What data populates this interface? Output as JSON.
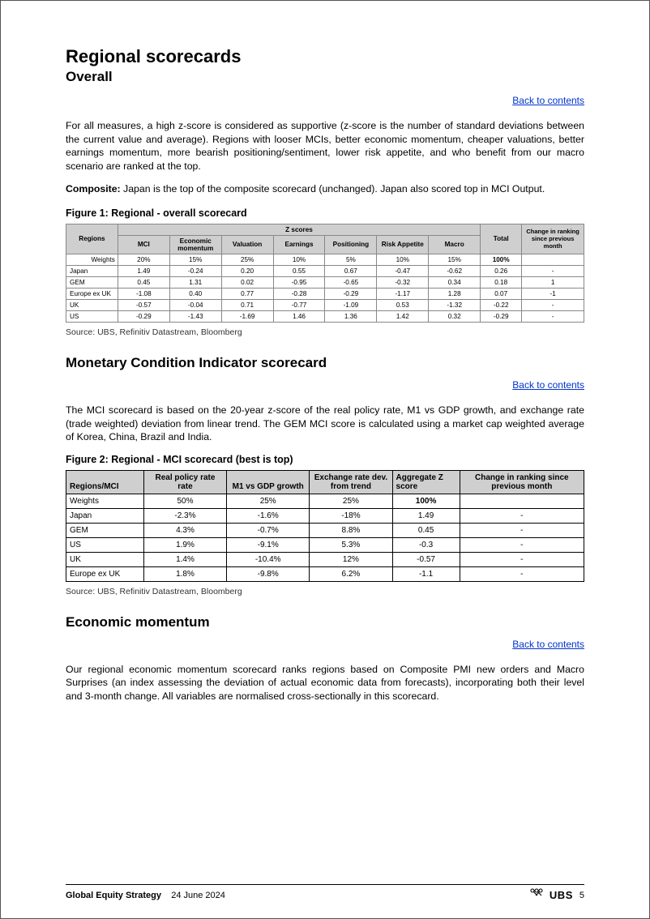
{
  "headings": {
    "main": "Regional scorecards",
    "overall": "Overall",
    "mci": "Monetary Condition Indicator scorecard",
    "econ": "Economic momentum"
  },
  "links": {
    "back": "Back to contents"
  },
  "paras": {
    "overall_intro": "For all measures, a high z-score is considered as supportive (z-score is the number of standard deviations between the current value and average). Regions with looser MCIs, better economic momentum, cheaper valuations, better earnings momentum, more bearish positioning/sentiment, lower risk appetite, and who benefit from our macro scenario are ranked at the top.",
    "composite_label": "Composite:",
    "composite_text": " Japan is the top of the composite scorecard (unchanged). Japan also scored top in MCI Output.",
    "mci_intro": "The MCI scorecard is based on the 20-year z-score of the real policy rate, M1 vs GDP growth, and exchange rate (trade weighted) deviation from linear trend. The GEM MCI score is calculated using a market cap weighted average of Korea, China, Brazil and India.",
    "econ_intro": "Our regional economic momentum scorecard ranks regions based on Composite PMI new orders and Macro Surprises (an index assessing the deviation of actual economic data from forecasts), incorporating both their level and 3-month change. All variables are normalised cross-sectionally in this scorecard."
  },
  "fig1": {
    "title": "Figure 1: Regional - overall scorecard",
    "source": "Source: UBS, Refinitiv Datastream, Bloomberg",
    "header_regions": "Regions",
    "header_zscores": "Z scores",
    "header_total": "Total",
    "header_change": "Change in ranking since previous month",
    "cols": [
      "MCI",
      "Economic momentum",
      "Valuation",
      "Earnings",
      "Positioning",
      "Risk Appetite",
      "Macro"
    ],
    "weights_label": "Weights",
    "weights": [
      "20%",
      "15%",
      "25%",
      "10%",
      "5%",
      "10%",
      "15%"
    ],
    "weights_total": "100%",
    "rows": [
      {
        "region": "Japan",
        "vals": [
          "1.49",
          "-0.24",
          "0.20",
          "0.55",
          "0.67",
          "-0.47",
          "-0.62"
        ],
        "total": "0.26",
        "change": "-"
      },
      {
        "region": "GEM",
        "vals": [
          "0.45",
          "1.31",
          "0.02",
          "-0.95",
          "-0.65",
          "-0.32",
          "0.34"
        ],
        "total": "0.18",
        "change": "1"
      },
      {
        "region": "Europe ex UK",
        "vals": [
          "-1.08",
          "0.40",
          "0.77",
          "-0.28",
          "-0.29",
          "-1.17",
          "1.28"
        ],
        "total": "0.07",
        "change": "-1"
      },
      {
        "region": "UK",
        "vals": [
          "-0.57",
          "-0.04",
          "0.71",
          "-0.77",
          "-1.09",
          "0.53",
          "-1.32"
        ],
        "total": "-0.22",
        "change": "-"
      },
      {
        "region": "US",
        "vals": [
          "-0.29",
          "-1.43",
          "-1.69",
          "1.46",
          "1.36",
          "1.42",
          "0.32"
        ],
        "total": "-0.29",
        "change": "-"
      }
    ],
    "colors": {
      "header_bg": "#cfcfcf",
      "border": "#888888",
      "text": "#000000"
    }
  },
  "fig2": {
    "title": "Figure 2: Regional - MCI scorecard (best is top)",
    "source": "Source: UBS, Refinitiv Datastream, Bloomberg",
    "header_regions": "Regions/MCI",
    "cols": [
      "Real policy rate rate",
      "M1 vs GDP growth",
      "Exchange rate dev. from trend",
      "Aggregate Z score",
      "Change in ranking since previous month"
    ],
    "weights_label": "Weights",
    "weights": [
      "50%",
      "25%",
      "25%",
      "100%",
      ""
    ],
    "rows": [
      {
        "region": "Japan",
        "vals": [
          "-2.3%",
          "-1.6%",
          "-18%",
          "1.49",
          "-"
        ]
      },
      {
        "region": "GEM",
        "vals": [
          "4.3%",
          "-0.7%",
          "8.8%",
          "0.45",
          "-"
        ]
      },
      {
        "region": "US",
        "vals": [
          "1.9%",
          "-9.1%",
          "5.3%",
          "-0.3",
          "-"
        ]
      },
      {
        "region": "UK",
        "vals": [
          "1.4%",
          "-10.4%",
          "12%",
          "-0.57",
          "-"
        ]
      },
      {
        "region": "Europe ex UK",
        "vals": [
          "1.8%",
          "-9.8%",
          "6.2%",
          "-1.1",
          "-"
        ]
      }
    ],
    "colors": {
      "header_bg": "#cfcfcf",
      "border": "#000000",
      "text": "#000000"
    }
  },
  "footer": {
    "title": "Global Equity Strategy",
    "date": "24 June 2024",
    "logo": "UBS",
    "page": "5"
  }
}
